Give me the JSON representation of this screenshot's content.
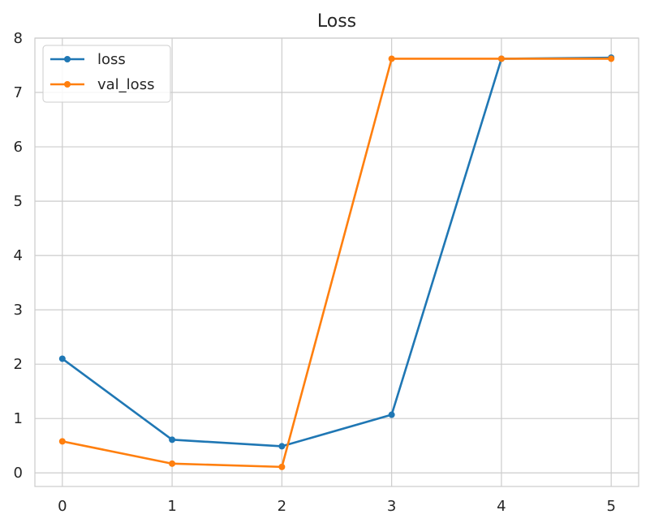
{
  "chart_data": {
    "type": "line",
    "title": "Loss",
    "xlabel": "",
    "ylabel": "",
    "x": [
      0,
      1,
      2,
      3,
      4,
      5
    ],
    "xlim": [
      -0.25,
      5.25
    ],
    "ylim": [
      -0.25,
      8
    ],
    "xticks": [
      "0",
      "1",
      "2",
      "3",
      "4",
      "5"
    ],
    "yticks": [
      "0",
      "1",
      "2",
      "3",
      "4",
      "5",
      "6",
      "7",
      "8"
    ],
    "grid": true,
    "legend_position": "top-left",
    "series": [
      {
        "name": "loss",
        "color": "#1f77b4",
        "values": [
          2.1,
          0.61,
          0.49,
          1.07,
          7.62,
          7.64
        ]
      },
      {
        "name": "val_loss",
        "color": "#ff7f0e",
        "values": [
          0.58,
          0.17,
          0.11,
          7.62,
          7.62,
          7.62
        ]
      }
    ]
  }
}
